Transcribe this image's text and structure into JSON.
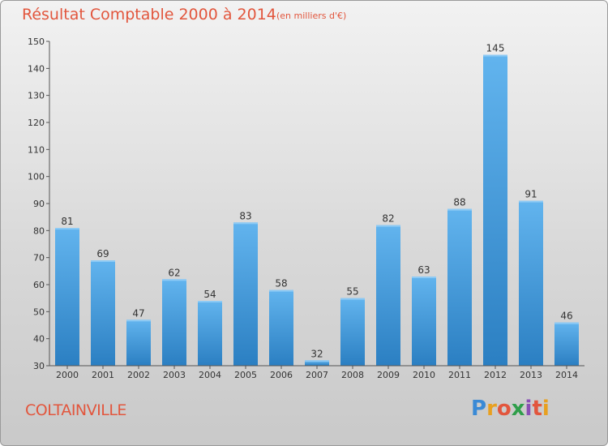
{
  "header": {
    "title": "Résultat Comptable 2000 à 2014",
    "subtitle": "(en milliers d'€)"
  },
  "footer": {
    "commune": "COLTAINVILLE",
    "brand": [
      "P",
      "r",
      "o",
      "x",
      "i",
      "t",
      "i"
    ],
    "brand_colors": [
      "#3a8ad6",
      "#e8a020",
      "#e2563d",
      "#2f9e4a",
      "#8a4fb5",
      "#e2563d",
      "#e8a020"
    ]
  },
  "colors": {
    "bar_top": "#62b4ee",
    "bar_bottom": "#2b7fc2",
    "title": "#e2563d"
  },
  "chart_data": {
    "type": "bar",
    "title": "Résultat Comptable 2000 à 2014",
    "subtitle": "(en milliers d'€)",
    "categories": [
      "2000",
      "2001",
      "2002",
      "2003",
      "2004",
      "2005",
      "2006",
      "2007",
      "2008",
      "2009",
      "2010",
      "2011",
      "2012",
      "2013",
      "2014"
    ],
    "values": [
      81,
      69,
      47,
      62,
      54,
      83,
      58,
      32,
      55,
      82,
      63,
      88,
      145,
      91,
      46
    ],
    "ylim": [
      30,
      150
    ],
    "yticks": [
      30,
      40,
      50,
      60,
      70,
      80,
      90,
      100,
      110,
      120,
      130,
      140,
      150
    ],
    "grid": false,
    "data_labels": true
  }
}
